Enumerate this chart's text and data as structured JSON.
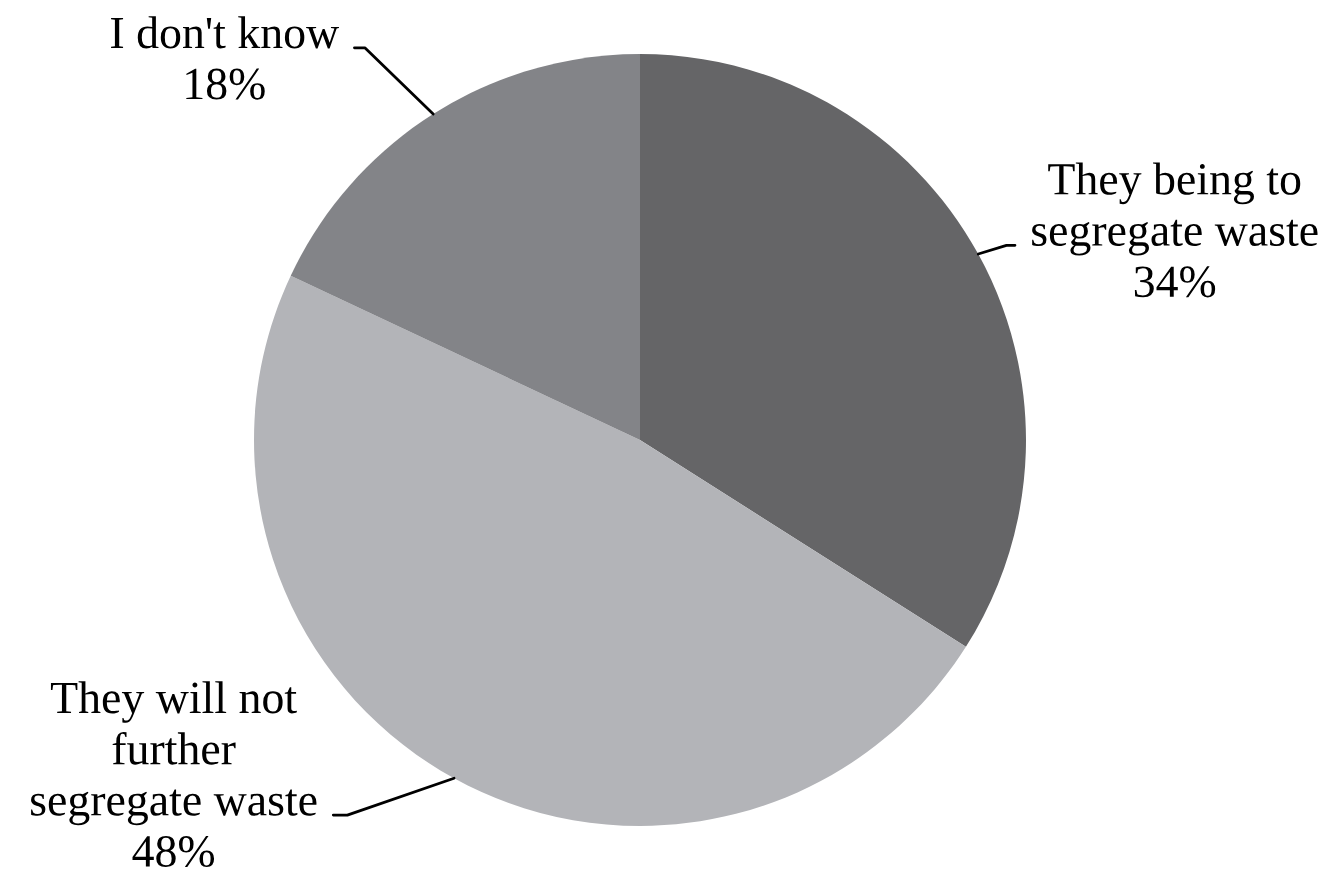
{
  "chart_data": {
    "type": "pie",
    "categories": [
      "They being to segregate waste",
      "They will not further segregate waste",
      "I don't know"
    ],
    "values": [
      34,
      48,
      18
    ],
    "value_labels": [
      "34%",
      "48%",
      "18%"
    ],
    "colors": [
      "#656567",
      "#b3b4b8",
      "#838488"
    ]
  }
}
